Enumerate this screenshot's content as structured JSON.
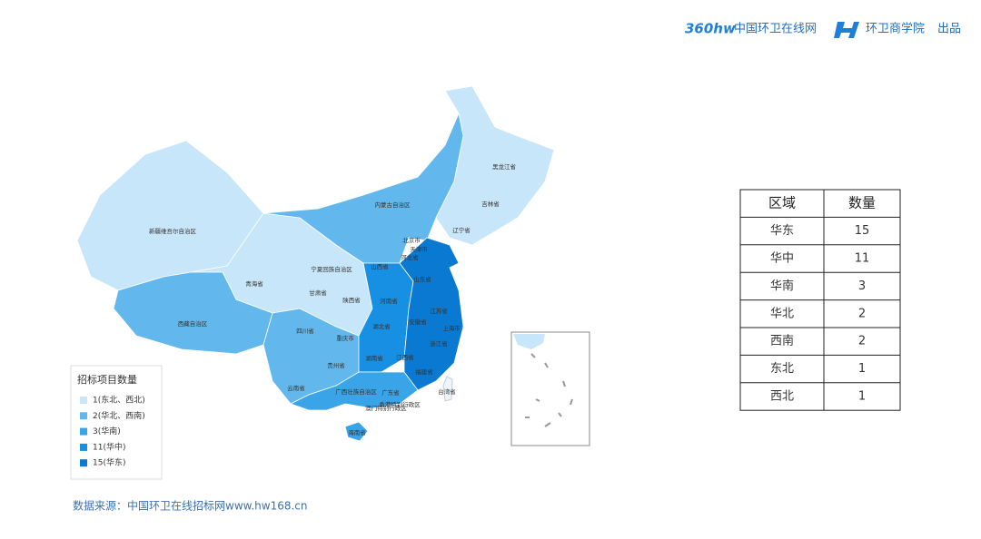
{
  "header": {
    "logo": "360hw",
    "site": "中国环卫在线网",
    "academy": "环卫商学院",
    "produced": "出品"
  },
  "map": {
    "provinces": [
      "黑龙江省",
      "吉林省",
      "辽宁省",
      "内蒙古自治区",
      "北京市",
      "天津市",
      "河北省",
      "山西省",
      "山东省",
      "宁夏回族自治区",
      "新疆维吾尔自治区",
      "青海省",
      "甘肃省",
      "陕西省",
      "河南省",
      "江苏省",
      "上海市",
      "安徽省",
      "湖北省",
      "四川省",
      "重庆市",
      "西藏自治区",
      "浙江省",
      "湖南省",
      "江西省",
      "贵州省",
      "福建省",
      "云南省",
      "广西壮族自治区",
      "广东省",
      "台湾省",
      "香港特别行政区",
      "澳门特别行政区",
      "海南省"
    ],
    "legend": {
      "title": "招标项目数量",
      "items": [
        {
          "label": "1(东北、西北)",
          "color": "#c8e6f9"
        },
        {
          "label": "2(华北、西南)",
          "color": "#62b8ec"
        },
        {
          "label": "3(华南)",
          "color": "#3aa4e8"
        },
        {
          "label": "11(华中)",
          "color": "#178fe2"
        },
        {
          "label": "15(华东)",
          "color": "#0a79d1"
        }
      ]
    }
  },
  "table": {
    "header": [
      "区域",
      "数量"
    ],
    "rows": [
      [
        "华东",
        15
      ],
      [
        "华中",
        11
      ],
      [
        "华南",
        3
      ],
      [
        "华北",
        2
      ],
      [
        "西南",
        2
      ],
      [
        "东北",
        1
      ],
      [
        "西北",
        1
      ]
    ]
  },
  "source": "数据来源：中国环卫在线招标网www.hw168.cn"
}
